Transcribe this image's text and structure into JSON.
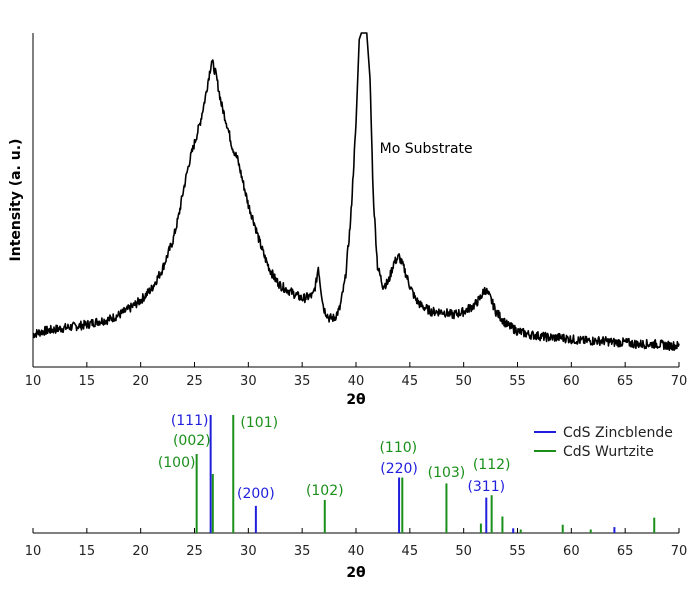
{
  "chart_data": [
    {
      "type": "line",
      "ylabel": "Intensity (a. u.)",
      "xlabel": "2θ",
      "xlim": [
        10,
        70
      ],
      "xticks": [
        "10",
        "15",
        "20",
        "25",
        "30",
        "35",
        "40",
        "45",
        "50",
        "55",
        "60",
        "65",
        "70"
      ],
      "y_ticks_shown": false,
      "y_unit": "arbitrary",
      "grid": false,
      "annotation": {
        "text": "Mo Substrate",
        "x": 42.2,
        "y": 0.63
      },
      "series": [
        {
          "color": "#000000",
          "points": [
            [
              10,
              0.07
            ],
            [
              11,
              0.08
            ],
            [
              12,
              0.085
            ],
            [
              13,
              0.09
            ],
            [
              14,
              0.095
            ],
            [
              15,
              0.1
            ],
            [
              16,
              0.11
            ],
            [
              17,
              0.115
            ],
            [
              18,
              0.13
            ],
            [
              19,
              0.15
            ],
            [
              20,
              0.175
            ],
            [
              21,
              0.21
            ],
            [
              22,
              0.27
            ],
            [
              23,
              0.36
            ],
            [
              23.5,
              0.43
            ],
            [
              24,
              0.52
            ],
            [
              24.5,
              0.6
            ],
            [
              25,
              0.66
            ],
            [
              25.5,
              0.72
            ],
            [
              26,
              0.8
            ],
            [
              26.3,
              0.86
            ],
            [
              26.6,
              0.915
            ],
            [
              27,
              0.87
            ],
            [
              27.5,
              0.78
            ],
            [
              28,
              0.72
            ],
            [
              28.5,
              0.65
            ],
            [
              29,
              0.61
            ],
            [
              29.5,
              0.54
            ],
            [
              30,
              0.47
            ],
            [
              30.5,
              0.42
            ],
            [
              31,
              0.36
            ],
            [
              31.5,
              0.31
            ],
            [
              32,
              0.27
            ],
            [
              32.5,
              0.24
            ],
            [
              33,
              0.22
            ],
            [
              34,
              0.2
            ],
            [
              35,
              0.18
            ],
            [
              36,
              0.19
            ],
            [
              36.3,
              0.23
            ],
            [
              36.5,
              0.28
            ],
            [
              36.7,
              0.22
            ],
            [
              37,
              0.15
            ],
            [
              37.5,
              0.12
            ],
            [
              38,
              0.12
            ],
            [
              38.5,
              0.15
            ],
            [
              39,
              0.24
            ],
            [
              39.5,
              0.42
            ],
            [
              40.0,
              0.72
            ],
            [
              40.3,
              0.98
            ],
            [
              40.5,
              1.0
            ],
            [
              40.8,
              1.0
            ],
            [
              41.0,
              1.0
            ],
            [
              41.3,
              0.86
            ],
            [
              41.6,
              0.5
            ],
            [
              42,
              0.28
            ],
            [
              42.5,
              0.22
            ],
            [
              43,
              0.23
            ],
            [
              43.5,
              0.29
            ],
            [
              44,
              0.31
            ],
            [
              44.5,
              0.27
            ],
            [
              45,
              0.22
            ],
            [
              45.5,
              0.18
            ],
            [
              46,
              0.16
            ],
            [
              47,
              0.14
            ],
            [
              48,
              0.14
            ],
            [
              49,
              0.13
            ],
            [
              50,
              0.14
            ],
            [
              51,
              0.16
            ],
            [
              51.5,
              0.18
            ],
            [
              52,
              0.21
            ],
            [
              52.5,
              0.18
            ],
            [
              53,
              0.14
            ],
            [
              54,
              0.1
            ],
            [
              55,
              0.08
            ],
            [
              56,
              0.07
            ],
            [
              57,
              0.065
            ],
            [
              58,
              0.06
            ],
            [
              59,
              0.06
            ],
            [
              60,
              0.055
            ],
            [
              61,
              0.05
            ],
            [
              62,
              0.05
            ],
            [
              63,
              0.05
            ],
            [
              64,
              0.045
            ],
            [
              65,
              0.045
            ],
            [
              66,
              0.04
            ],
            [
              67,
              0.04
            ],
            [
              68,
              0.04
            ],
            [
              69,
              0.035
            ],
            [
              70,
              0.035
            ]
          ]
        }
      ]
    },
    {
      "type": "bar",
      "xlabel": "2θ",
      "xlim": [
        10,
        70
      ],
      "xticks": [
        "10",
        "15",
        "20",
        "25",
        "30",
        "35",
        "40",
        "45",
        "50",
        "55",
        "60",
        "65",
        "70"
      ],
      "y_ticks_shown": false,
      "legend_position": "top-right",
      "series": [
        {
          "name": "CdS Zincblende",
          "color": "#1f1fdc",
          "peaks": [
            {
              "x": 26.5,
              "h": 100,
              "label": "(111)"
            },
            {
              "x": 30.7,
              "h": 23,
              "label": "(200)"
            },
            {
              "x": 44.0,
              "h": 47,
              "label": "(220)"
            },
            {
              "x": 52.1,
              "h": 30,
              "label": "(311)"
            },
            {
              "x": 54.6,
              "h": 4,
              "label": ""
            },
            {
              "x": 64.0,
              "h": 5,
              "label": ""
            }
          ]
        },
        {
          "name": "CdS Wurtzite",
          "color": "#1a8f1a",
          "peaks": [
            {
              "x": 25.2,
              "h": 67,
              "label": "(100)"
            },
            {
              "x": 26.7,
              "h": 50,
              "label": ""
            },
            {
              "x": 28.6,
              "h": 100,
              "label": "(101)"
            },
            {
              "x": 37.1,
              "h": 28,
              "label": "(102)"
            },
            {
              "x": 44.3,
              "h": 47,
              "label": "(110)"
            },
            {
              "x": 48.4,
              "h": 42,
              "label": "(103)"
            },
            {
              "x": 51.6,
              "h": 8,
              "label": ""
            },
            {
              "x": 52.6,
              "h": 32,
              "label": "(112)"
            },
            {
              "x": 53.6,
              "h": 14,
              "label": ""
            },
            {
              "x": 55.3,
              "h": 3,
              "label": ""
            },
            {
              "x": 59.2,
              "h": 7,
              "label": ""
            },
            {
              "x": 61.8,
              "h": 3,
              "label": ""
            },
            {
              "x": 67.7,
              "h": 13,
              "label": ""
            }
          ],
          "extra_labels": [
            {
              "x": 26.7,
              "text": "(002)"
            }
          ]
        }
      ]
    }
  ]
}
